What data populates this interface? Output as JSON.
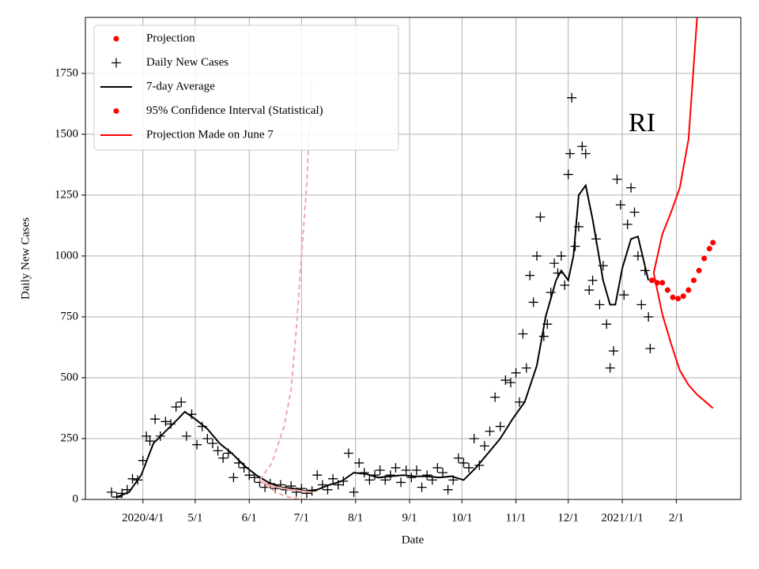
{
  "chart_data": {
    "type": "line",
    "x_label": "Date",
    "y_label": "Daily New Cases",
    "annotation": "RI",
    "xlim": [
      "2020-02-28",
      "2021-03-10"
    ],
    "ylim": [
      0,
      1980
    ],
    "xticks": [
      {
        "value": "2020-04-01",
        "label": "2020/4/1"
      },
      {
        "value": "2020-05-01",
        "label": "5/1"
      },
      {
        "value": "2020-06-01",
        "label": "6/1"
      },
      {
        "value": "2020-07-01",
        "label": "7/1"
      },
      {
        "value": "2020-08-01",
        "label": "8/1"
      },
      {
        "value": "2020-09-01",
        "label": "9/1"
      },
      {
        "value": "2020-10-01",
        "label": "10/1"
      },
      {
        "value": "2020-11-01",
        "label": "11/1"
      },
      {
        "value": "2020-12-01",
        "label": "12/1"
      },
      {
        "value": "2021-01-01",
        "label": "2021/1/1"
      },
      {
        "value": "2021-02-01",
        "label": "2/1"
      }
    ],
    "yticks": [
      0,
      250,
      500,
      750,
      1000,
      1250,
      1500,
      1750
    ],
    "grid": true,
    "legend": "upper left",
    "series": [
      {
        "name": "Projection",
        "color": "#ff0000",
        "marker": "o",
        "x": [
          "2021-01-18",
          "2021-01-21",
          "2021-01-24",
          "2021-01-27",
          "2021-01-30",
          "2021-02-02",
          "2021-02-05",
          "2021-02-08",
          "2021-02-11",
          "2021-02-14",
          "2021-02-17",
          "2021-02-20",
          "2021-02-22"
        ],
        "values": [
          900,
          890,
          890,
          860,
          830,
          825,
          835,
          860,
          900,
          940,
          990,
          1030,
          1055
        ]
      },
      {
        "name": "Daily New Cases",
        "color": "#000000",
        "marker": "+",
        "x": [
          "2020-03-14",
          "2020-03-17",
          "2020-03-20",
          "2020-03-23",
          "2020-03-26",
          "2020-03-29",
          "2020-04-01",
          "2020-04-03",
          "2020-04-05",
          "2020-04-08",
          "2020-04-11",
          "2020-04-14",
          "2020-04-17",
          "2020-04-20",
          "2020-04-23",
          "2020-04-26",
          "2020-04-29",
          "2020-05-02",
          "2020-05-05",
          "2020-05-08",
          "2020-05-11",
          "2020-05-14",
          "2020-05-17",
          "2020-05-20",
          "2020-05-23",
          "2020-05-26",
          "2020-05-29",
          "2020-06-01",
          "2020-06-04",
          "2020-06-07",
          "2020-06-10",
          "2020-06-13",
          "2020-06-16",
          "2020-06-19",
          "2020-06-22",
          "2020-06-25",
          "2020-06-28",
          "2020-07-01",
          "2020-07-04",
          "2020-07-07",
          "2020-07-10",
          "2020-07-13",
          "2020-07-16",
          "2020-07-19",
          "2020-07-22",
          "2020-07-25",
          "2020-07-28",
          "2020-07-31",
          "2020-08-03",
          "2020-08-06",
          "2020-08-09",
          "2020-08-12",
          "2020-08-15",
          "2020-08-18",
          "2020-08-21",
          "2020-08-24",
          "2020-08-27",
          "2020-08-30",
          "2020-09-02",
          "2020-09-05",
          "2020-09-08",
          "2020-09-11",
          "2020-09-14",
          "2020-09-17",
          "2020-09-20",
          "2020-09-23",
          "2020-09-26",
          "2020-09-29",
          "2020-10-02",
          "2020-10-05",
          "2020-10-08",
          "2020-10-11",
          "2020-10-14",
          "2020-10-17",
          "2020-10-20",
          "2020-10-23",
          "2020-10-26",
          "2020-10-29",
          "2020-11-01",
          "2020-11-03",
          "2020-11-05",
          "2020-11-07",
          "2020-11-09",
          "2020-11-11",
          "2020-11-13",
          "2020-11-15",
          "2020-11-17",
          "2020-11-19",
          "2020-11-21",
          "2020-11-23",
          "2020-11-25",
          "2020-11-27",
          "2020-11-29",
          "2020-12-01",
          "2020-12-02",
          "2020-12-03",
          "2020-12-05",
          "2020-12-07",
          "2020-12-09",
          "2020-12-11",
          "2020-12-13",
          "2020-12-15",
          "2020-12-17",
          "2020-12-19",
          "2020-12-21",
          "2020-12-23",
          "2020-12-25",
          "2020-12-27",
          "2020-12-29",
          "2020-12-31",
          "2021-01-02",
          "2021-01-04",
          "2021-01-06",
          "2021-01-08",
          "2021-01-10",
          "2021-01-12",
          "2021-01-14",
          "2021-01-16",
          "2021-01-17"
        ],
        "values": [
          30,
          10,
          25,
          40,
          85,
          80,
          160,
          260,
          240,
          330,
          260,
          320,
          310,
          380,
          400,
          260,
          350,
          225,
          300,
          250,
          230,
          200,
          170,
          190,
          90,
          150,
          130,
          100,
          90,
          70,
          50,
          65,
          45,
          60,
          40,
          55,
          30,
          45,
          25,
          35,
          100,
          60,
          40,
          85,
          60,
          75,
          190,
          30,
          150,
          110,
          80,
          100,
          120,
          80,
          100,
          130,
          70,
          120,
          90,
          120,
          50,
          100,
          80,
          130,
          110,
          40,
          80,
          170,
          150,
          130,
          250,
          140,
          220,
          280,
          420,
          300,
          490,
          480,
          520,
          400,
          680,
          540,
          920,
          810,
          1000,
          1160,
          670,
          720,
          850,
          970,
          930,
          1000,
          880,
          1335,
          1420,
          1650,
          1040,
          1120,
          1450,
          1420,
          860,
          900,
          1070,
          800,
          960,
          720,
          540,
          610,
          1315,
          1210,
          840,
          1130,
          1280,
          1180,
          1000,
          800,
          940,
          750,
          620
        ]
      },
      {
        "name": "7-day Average",
        "color": "#000000",
        "marker": null,
        "x": [
          "2020-03-17",
          "2020-03-24",
          "2020-03-31",
          "2020-04-07",
          "2020-04-14",
          "2020-04-21",
          "2020-04-25",
          "2020-05-01",
          "2020-05-08",
          "2020-05-15",
          "2020-05-22",
          "2020-05-29",
          "2020-06-05",
          "2020-06-12",
          "2020-06-19",
          "2020-06-26",
          "2020-07-03",
          "2020-07-10",
          "2020-07-17",
          "2020-07-24",
          "2020-07-31",
          "2020-08-07",
          "2020-08-14",
          "2020-08-21",
          "2020-08-28",
          "2020-09-04",
          "2020-09-11",
          "2020-09-18",
          "2020-09-25",
          "2020-10-02",
          "2020-10-09",
          "2020-10-16",
          "2020-10-23",
          "2020-10-30",
          "2020-11-06",
          "2020-11-13",
          "2020-11-18",
          "2020-11-24",
          "2020-11-27",
          "2020-12-01",
          "2020-12-04",
          "2020-12-07",
          "2020-12-11",
          "2020-12-15",
          "2020-12-21",
          "2020-12-25",
          "2020-12-28",
          "2021-01-01",
          "2021-01-06",
          "2021-01-10",
          "2021-01-16"
        ],
        "values": [
          10,
          30,
          100,
          230,
          280,
          330,
          360,
          330,
          290,
          230,
          190,
          140,
          100,
          70,
          50,
          45,
          35,
          40,
          60,
          75,
          110,
          105,
          90,
          95,
          100,
          95,
          95,
          90,
          95,
          80,
          130,
          190,
          250,
          330,
          400,
          550,
          750,
          900,
          940,
          900,
          1000,
          1250,
          1290,
          1150,
          900,
          800,
          800,
          950,
          1070,
          1080,
          900
        ]
      },
      {
        "name": "95% Confidence Interval (Statistical)",
        "color": "#ff0000",
        "marker": "o",
        "x": [
          "2021-01-19",
          "2021-01-24",
          "2021-01-29",
          "2021-02-03",
          "2021-02-08",
          "2021-02-13",
          "2021-02-18",
          "2021-02-22"
        ],
        "upper": [
          930,
          1090,
          1180,
          1280,
          1480,
          1990,
          null,
          null
        ],
        "lower": [
          930,
          760,
          640,
          530,
          470,
          430,
          400,
          375
        ]
      },
      {
        "name": "Projection Made on June 7",
        "color": "#ff0000",
        "marker": null,
        "band_color": "#f7a8a8",
        "x": [
          "2020-06-07",
          "2020-06-14",
          "2020-06-21",
          "2020-06-25",
          "2020-06-28",
          "2020-07-01",
          "2020-07-04",
          "2020-07-07"
        ],
        "values": [
          75,
          55,
          45,
          40,
          38,
          35,
          32,
          30
        ],
        "upper": [
          80,
          150,
          300,
          450,
          700,
          1000,
          1300,
          1750
        ],
        "lower": [
          80,
          40,
          15,
          8,
          3,
          1,
          0,
          0
        ]
      }
    ]
  }
}
